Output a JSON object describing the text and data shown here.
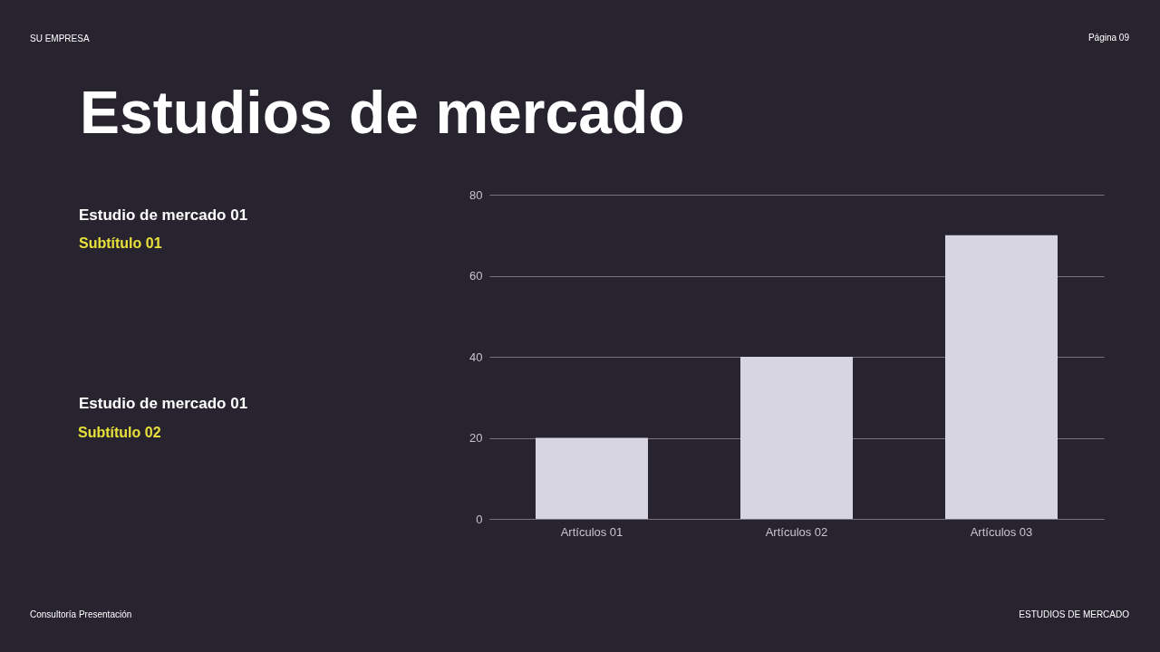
{
  "chart_data": {
    "type": "bar",
    "title": "Estudios de mercado",
    "categories": [
      "Artículos 01",
      "Artículos 02",
      "Artículos 03"
    ],
    "values": [
      20,
      40,
      70
    ],
    "color": "#d8d5e2",
    "ylim": [
      0,
      80
    ],
    "yticks": [
      0,
      20,
      40,
      60,
      80
    ],
    "grid": "y",
    "annotations": [
      "SU EMPRESA",
      "Página 09",
      "Estudio de mercado 01",
      "Subtítulo 01",
      "Estudio de mercado 01",
      "Subtítulo 02",
      "Consultoría Presentación",
      "ESTUDIOS DE MERCADO"
    ]
  }
}
